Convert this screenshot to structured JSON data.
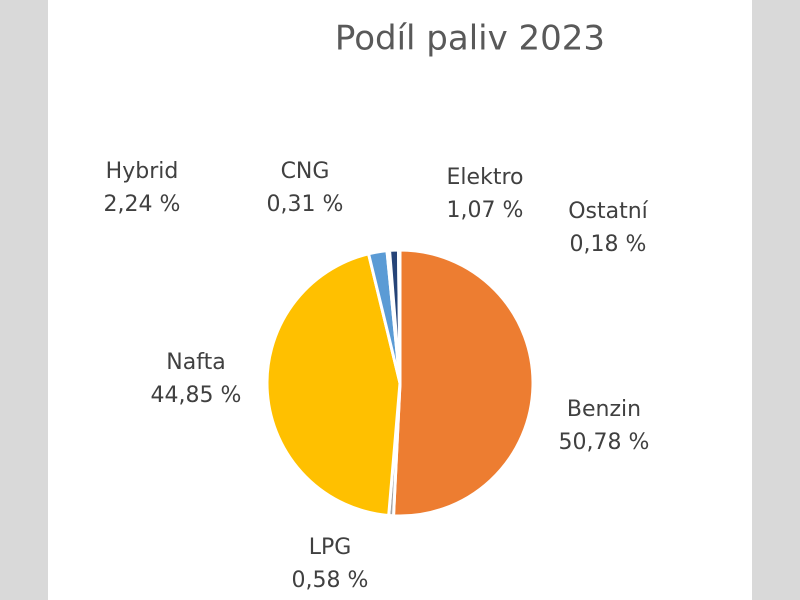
{
  "chart_data": {
    "type": "pie",
    "title": "Podíl paliv 2023",
    "categories": [
      "Benzin",
      "LPG",
      "Nafta",
      "Hybrid",
      "CNG",
      "Elektro",
      "Ostatní"
    ],
    "values": [
      50.78,
      0.58,
      44.85,
      2.24,
      0.31,
      1.07,
      0.18
    ],
    "value_labels": [
      "50,78 %",
      "0,58 %",
      "44,85 %",
      "2,24 %",
      "0,31 %",
      "1,07 %",
      "0,18 %"
    ],
    "colors": [
      "#ed7d31",
      "#a5a5a5",
      "#ffc000",
      "#5b9bd5",
      "#70ad47",
      "#264478",
      "#9e480e"
    ]
  }
}
